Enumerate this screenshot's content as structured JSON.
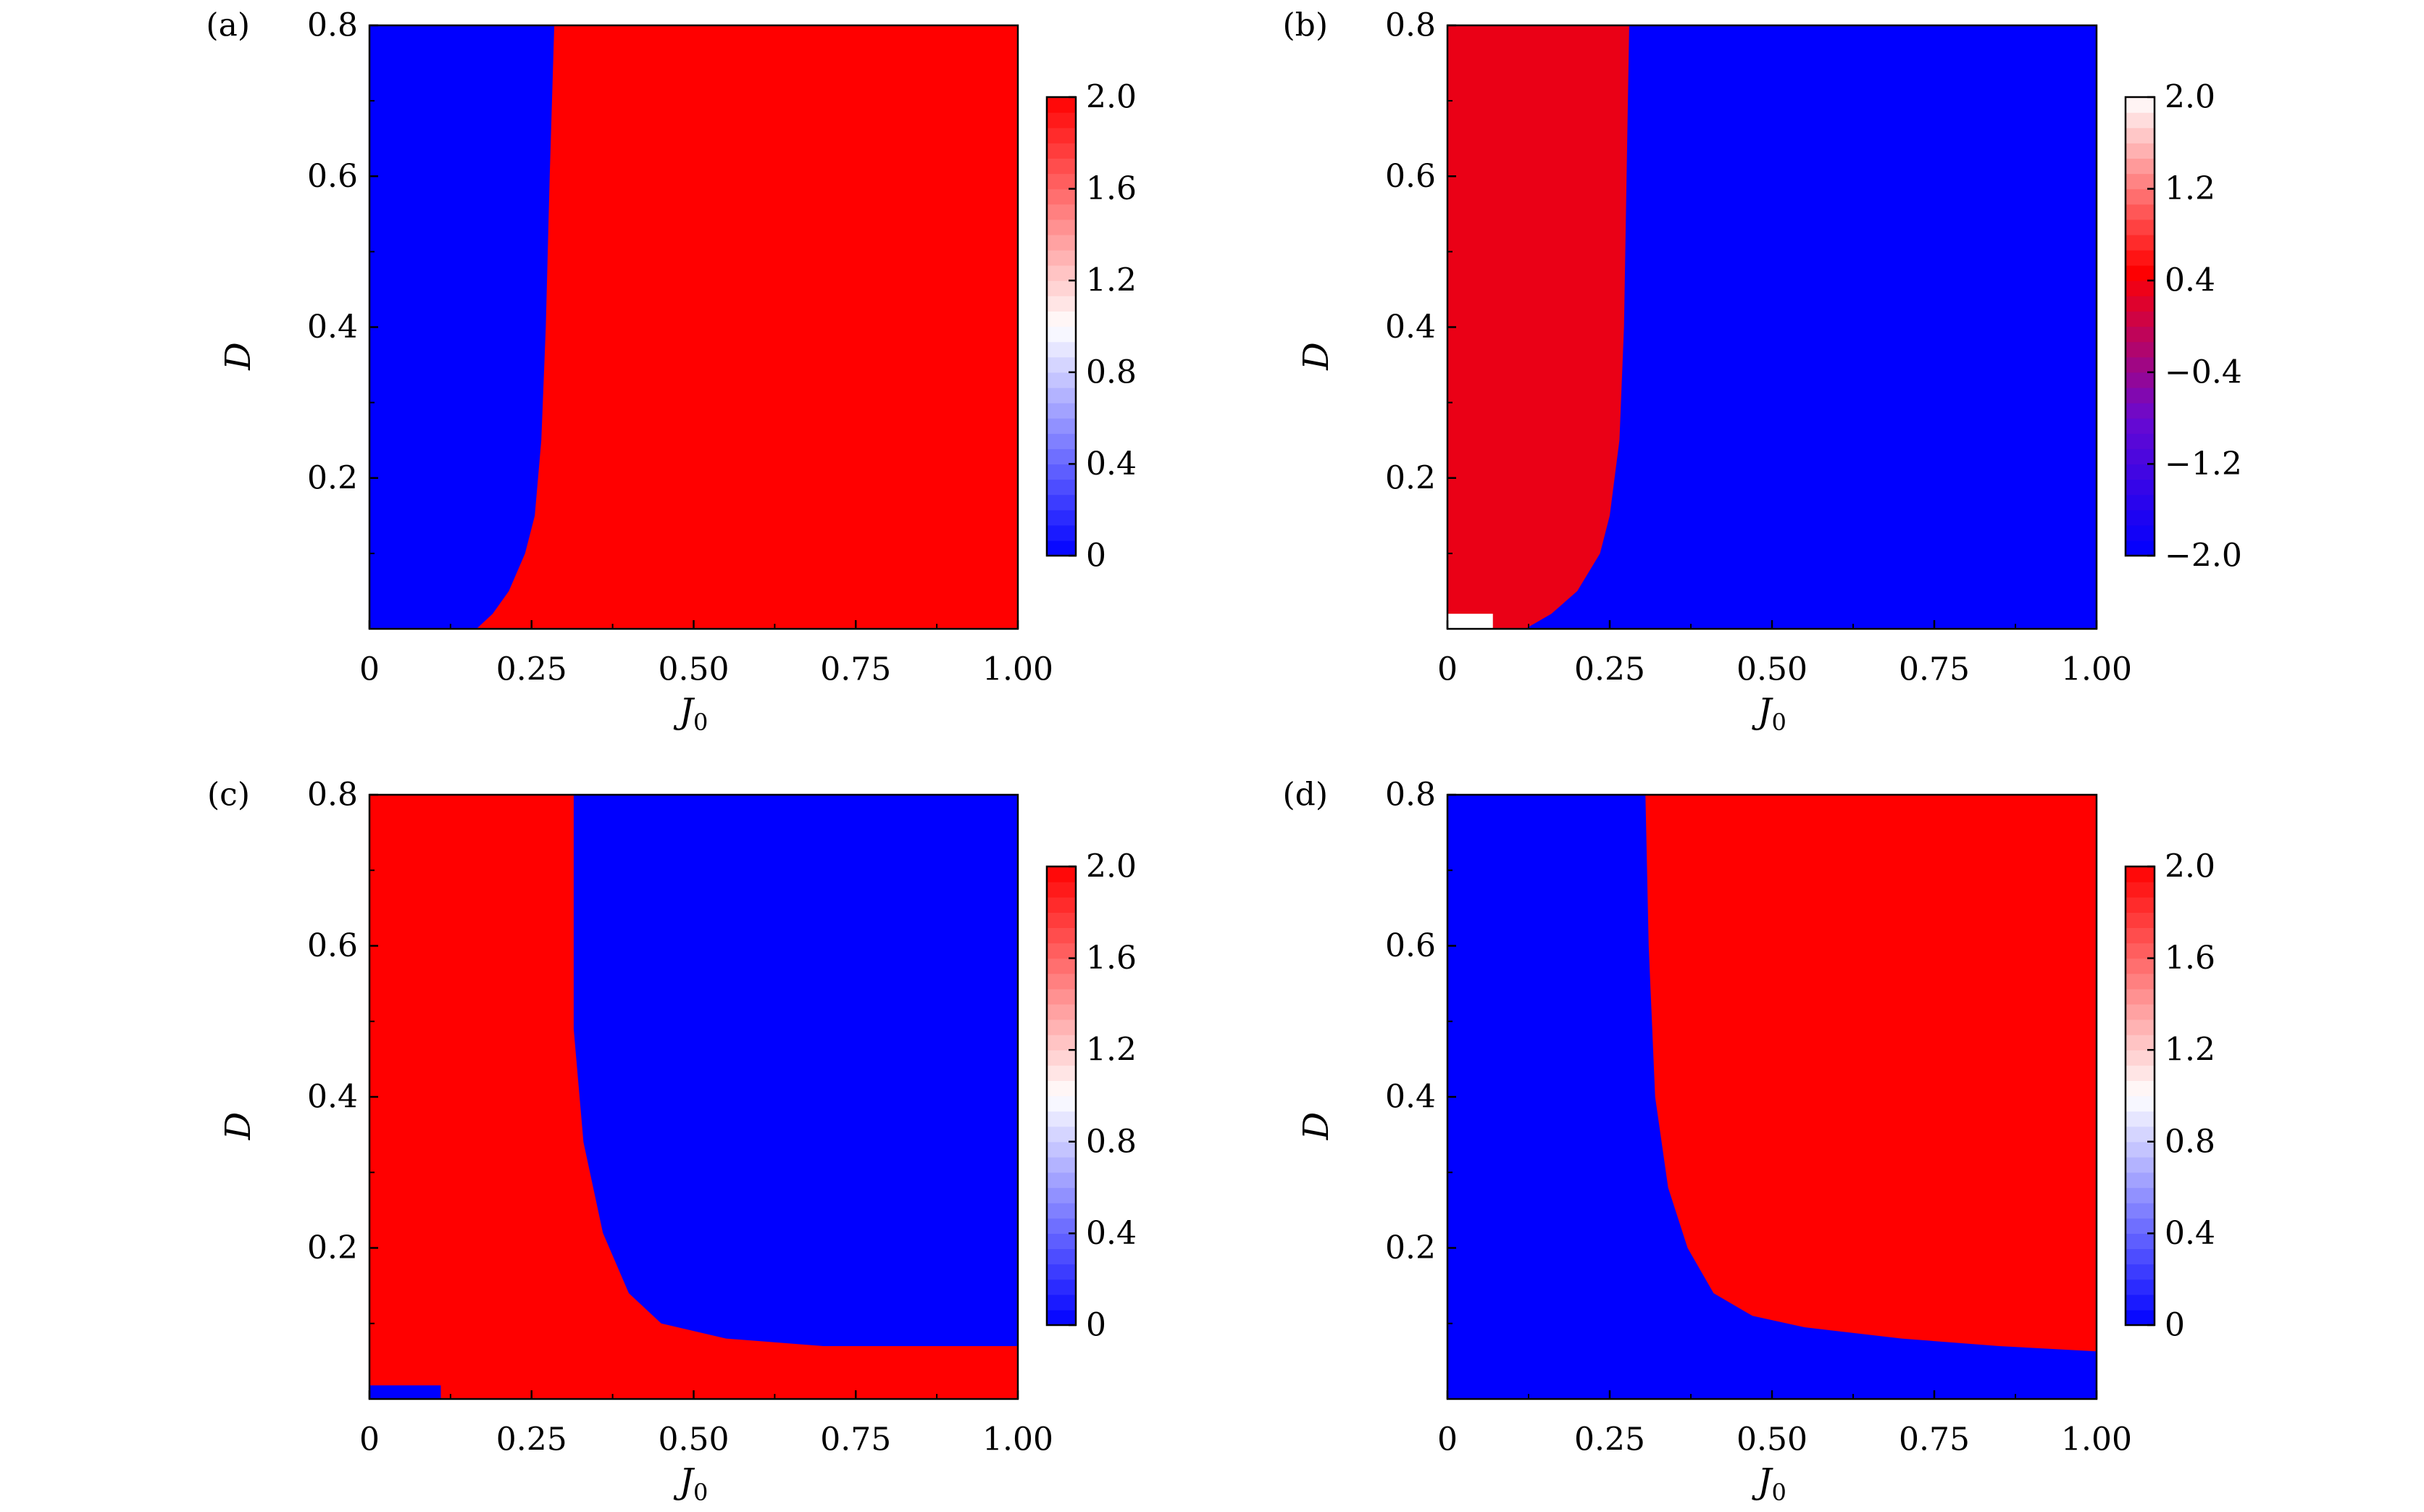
{
  "colors": {
    "blue": "#0000ff",
    "red": "#ff0000",
    "dark_red": "#ea0016",
    "white": "#ffffff",
    "purple": "#6a0ad0"
  },
  "chart_data": [
    {
      "panel_label": "(a)",
      "type": "heatmap",
      "title": "",
      "xlabel": "J_0",
      "ylabel": "D",
      "xlim": [
        0,
        1.0
      ],
      "ylim": [
        0,
        0.8
      ],
      "x_ticks": [
        "0",
        "0.25",
        "0.50",
        "0.75",
        "1.00"
      ],
      "y_ticks": [
        "0.2",
        "0.4",
        "0.6",
        "0.8"
      ],
      "colorbar": {
        "min": 0,
        "max": 2.0,
        "ticks": [
          "0",
          "0.4",
          "0.8",
          "1.2",
          "1.6",
          "2.0"
        ],
        "colormap": "blue-white-red"
      },
      "regions": [
        {
          "value": 0,
          "color": "blue",
          "boundary": [
            [
              0.165,
              0.0
            ],
            [
              0.19,
              0.02
            ],
            [
              0.215,
              0.05
            ],
            [
              0.24,
              0.1
            ],
            [
              0.255,
              0.15
            ],
            [
              0.265,
              0.25
            ],
            [
              0.272,
              0.4
            ],
            [
              0.278,
              0.6
            ],
            [
              0.285,
              0.8
            ]
          ]
        },
        {
          "value": 2.0,
          "color": "red"
        }
      ]
    },
    {
      "panel_label": "(b)",
      "type": "heatmap",
      "title": "",
      "xlabel": "J_0",
      "ylabel": "D",
      "xlim": [
        0,
        1.0
      ],
      "ylim": [
        0,
        0.8
      ],
      "x_ticks": [
        "0",
        "0.25",
        "0.50",
        "0.75",
        "1.00"
      ],
      "y_ticks": [
        "0.2",
        "0.4",
        "0.6",
        "0.8"
      ],
      "colorbar": {
        "min": -2.0,
        "max": 2.0,
        "ticks": [
          "−2.0",
          "−1.2",
          "−0.4",
          "0.4",
          "1.2",
          "2.0"
        ],
        "colormap": "blue-purple-red-white"
      },
      "regions": [
        {
          "value": 0.4,
          "color": "dark_red",
          "boundary": [
            [
              0.12,
              0.0
            ],
            [
              0.16,
              0.02
            ],
            [
              0.2,
              0.05
            ],
            [
              0.235,
              0.1
            ],
            [
              0.25,
              0.15
            ],
            [
              0.265,
              0.25
            ],
            [
              0.272,
              0.4
            ],
            [
              0.28,
              0.8
            ]
          ]
        },
        {
          "value": 2.0,
          "color": "white",
          "extent": {
            "x": [
              0,
              0.07
            ],
            "y": [
              0,
              0.02
            ]
          }
        },
        {
          "value": -2.0,
          "color": "blue"
        }
      ]
    },
    {
      "panel_label": "(c)",
      "type": "heatmap",
      "title": "",
      "xlabel": "J_0",
      "ylabel": "D",
      "xlim": [
        0,
        1.0
      ],
      "ylim": [
        0,
        0.8
      ],
      "x_ticks": [
        "0",
        "0.25",
        "0.50",
        "0.75",
        "1.00"
      ],
      "y_ticks": [
        "0.2",
        "0.4",
        "0.6",
        "0.8"
      ],
      "colorbar": {
        "min": 0,
        "max": 2.0,
        "ticks": [
          "0",
          "0.4",
          "0.8",
          "1.2",
          "1.6",
          "2.0"
        ],
        "colormap": "blue-white-red"
      },
      "regions": [
        {
          "value": 2.0,
          "color": "red",
          "boundary": [
            [
              0.315,
              0.8
            ],
            [
              0.315,
              0.49
            ],
            [
              0.33,
              0.34
            ],
            [
              0.36,
              0.22
            ],
            [
              0.4,
              0.14
            ],
            [
              0.45,
              0.1
            ],
            [
              0.55,
              0.08
            ],
            [
              0.7,
              0.07
            ],
            [
              1.0,
              0.07
            ]
          ]
        },
        {
          "value": 0,
          "color": "blue"
        },
        {
          "value": 0,
          "color": "blue",
          "extent": {
            "x": [
              0,
              0.11
            ],
            "y": [
              0,
              0.018
            ]
          }
        }
      ]
    },
    {
      "panel_label": "(d)",
      "type": "heatmap",
      "title": "",
      "xlabel": "J_0",
      "ylabel": "D",
      "xlim": [
        0,
        1.0
      ],
      "ylim": [
        0,
        0.8
      ],
      "x_ticks": [
        "0",
        "0.25",
        "0.50",
        "0.75",
        "1.00"
      ],
      "y_ticks": [
        "0.2",
        "0.4",
        "0.6",
        "0.8"
      ],
      "colorbar": {
        "min": 0,
        "max": 2.0,
        "ticks": [
          "0",
          "0.4",
          "0.8",
          "1.2",
          "1.6",
          "2.0"
        ],
        "colormap": "blue-white-red"
      },
      "regions": [
        {
          "value": 2.0,
          "color": "red",
          "boundary": [
            [
              0.305,
              0.8
            ],
            [
              0.31,
              0.6
            ],
            [
              0.32,
              0.4
            ],
            [
              0.34,
              0.28
            ],
            [
              0.37,
              0.2
            ],
            [
              0.41,
              0.14
            ],
            [
              0.47,
              0.11
            ],
            [
              0.55,
              0.095
            ],
            [
              0.7,
              0.08
            ],
            [
              0.85,
              0.07
            ],
            [
              1.0,
              0.063
            ]
          ]
        },
        {
          "value": 0,
          "color": "blue"
        }
      ]
    }
  ]
}
